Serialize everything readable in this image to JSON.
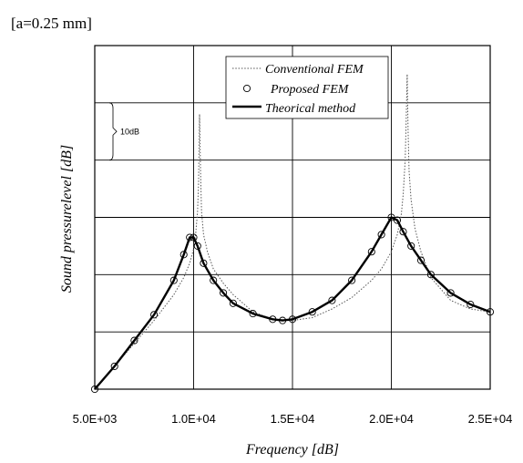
{
  "caption": "[a=0.25 mm]",
  "chart_data": {
    "type": "line",
    "title": "",
    "xlabel": "Frequency [dB]",
    "ylabel": "Sound pressurelevel [dB]",
    "xlim": [
      5000,
      25000
    ],
    "xticks": [
      5000,
      10000,
      15000,
      20000,
      25000
    ],
    "xtick_labels": [
      "5.0E+03",
      "1.0E+04",
      "1.5E+04",
      "2.0E+04",
      "2.5E+04"
    ],
    "ylim": [
      0,
      60
    ],
    "y_unit_note": "relative level; each gridline division = 10 dB",
    "grid": true,
    "legend_position": "top-right",
    "scale_annotation": {
      "label": "10dB",
      "span": [
        40,
        50
      ]
    },
    "series": [
      {
        "name": "Conventional FEM",
        "style": "dotted",
        "color": "#555555",
        "x": [
          5000,
          6000,
          7000,
          8000,
          9000,
          9500,
          9800,
          10000,
          10100,
          10200,
          10250,
          10300,
          10350,
          10400,
          10500,
          10700,
          11000,
          11500,
          12000,
          13000,
          14000,
          15000,
          16000,
          17000,
          18000,
          19000,
          19500,
          20000,
          20300,
          20500,
          20600,
          20700,
          20750,
          20800,
          20850,
          20900,
          21000,
          21200,
          21500,
          22000,
          23000,
          24000,
          25000
        ],
        "y": [
          0,
          4,
          8,
          12,
          16.5,
          19.5,
          22,
          24.5,
          27,
          31,
          36,
          48,
          38,
          31,
          27,
          24,
          21,
          18.5,
          16.5,
          13.5,
          12.2,
          12,
          12.5,
          14,
          16,
          19,
          21,
          24,
          27,
          30.5,
          34,
          40,
          47,
          55,
          45,
          38,
          33,
          28,
          24,
          19.5,
          15.5,
          14,
          13.5
        ]
      },
      {
        "name": "Proposed FEM",
        "style": "circles",
        "color": "#000000",
        "x": [
          5000,
          6000,
          7000,
          8000,
          9000,
          9500,
          9800,
          10000,
          10200,
          10500,
          11000,
          11500,
          12000,
          13000,
          14000,
          14500,
          15000,
          16000,
          17000,
          18000,
          19000,
          19500,
          20000,
          20300,
          20600,
          21000,
          21500,
          22000,
          23000,
          24000,
          25000
        ],
        "y": [
          0,
          4,
          8.5,
          13,
          19,
          23.5,
          26.5,
          26.5,
          25,
          22,
          19,
          16.8,
          15,
          13.2,
          12.2,
          12,
          12.2,
          13.5,
          15.5,
          19,
          24,
          27,
          30,
          29.5,
          27.5,
          25,
          22.5,
          20,
          16.8,
          14.8,
          13.5
        ]
      },
      {
        "name": "Theorical method",
        "style": "solid",
        "color": "#000000",
        "x": [
          5000,
          6000,
          7000,
          8000,
          9000,
          9500,
          9800,
          10000,
          10200,
          10500,
          11000,
          11500,
          12000,
          13000,
          14000,
          14500,
          15000,
          16000,
          17000,
          18000,
          19000,
          19500,
          20000,
          20300,
          20600,
          21000,
          21500,
          22000,
          23000,
          24000,
          25000
        ],
        "y": [
          0,
          4,
          8.5,
          13,
          19,
          23.5,
          26.5,
          26.5,
          25,
          22,
          19,
          16.8,
          15,
          13.2,
          12.2,
          12,
          12.2,
          13.5,
          15.5,
          19,
          24,
          27,
          30,
          29.5,
          27.5,
          25,
          22.5,
          20,
          16.8,
          14.8,
          13.5
        ]
      }
    ]
  }
}
